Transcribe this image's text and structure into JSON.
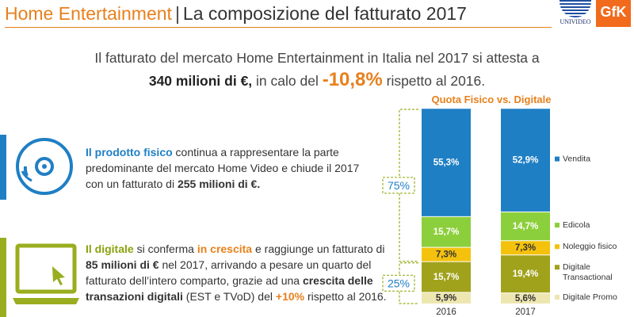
{
  "header": {
    "title_part1": "Home Entertainment",
    "separator": "|",
    "title_part2": "La composizione del fatturato 2017",
    "logo_univideo": "UNIVIDEO",
    "logo_gfk": "GfK"
  },
  "intro": {
    "line1": "Il fatturato del mercato Home Entertainment in Italia nel 2017 si attesta a",
    "amount": "340 milioni di €,",
    "mid": " in calo del ",
    "decline": "-10,8%",
    "end": " rispetto al 2016."
  },
  "physical": {
    "icon": "disc-icon",
    "highlight": "Il prodotto fisico",
    "text1": " continua a rappresentare la parte predominante del mercato Home Video e chiude il 2017 con un fatturato di ",
    "amount": "255 milioni di €.",
    "color": "#1f7fc4"
  },
  "digital": {
    "icon": "laptop-icon",
    "highlight": "Il digitale",
    "text1": " si conferma ",
    "growth": "in crescita",
    "text2": " e raggiunge un fatturato di ",
    "amount": "85 milioni di €",
    "text3": " nel 2017, arrivando a pesare un quarto del fatturato dell’intero comparto, grazie ad una ",
    "growth2": "crescita delle transazioni digitali",
    "text4": " (EST e TVoD) del ",
    "pct": "+10%",
    "text5": " rispetto al 2016.",
    "color": "#9aad1e"
  },
  "chart_data": {
    "type": "bar",
    "stacked": true,
    "title": "Quota Fisico vs. Digitale",
    "categories": [
      "2016",
      "2017"
    ],
    "series": [
      {
        "name": "Digitale Promo",
        "values": [
          5.9,
          5.6
        ],
        "labels": [
          "5,9%",
          "5,6%"
        ],
        "color": "#ede6b0",
        "text_color": "#333333"
      },
      {
        "name": "Digitale Transactional",
        "values": [
          15.7,
          19.4
        ],
        "labels": [
          "15,7%",
          "19,4%"
        ],
        "color": "#a1a21c",
        "text_color": "#ffffff"
      },
      {
        "name": "Noleggio fisico",
        "values": [
          7.3,
          7.3
        ],
        "labels": [
          "7,3%",
          "7,3%"
        ],
        "color": "#f4c20d",
        "text_color": "#333333"
      },
      {
        "name": "Edicola",
        "values": [
          15.7,
          14.7
        ],
        "labels": [
          "15,7%",
          "14,7%"
        ],
        "color": "#8ccf3c",
        "text_color": "#ffffff"
      },
      {
        "name": "Vendita",
        "values": [
          55.3,
          52.9
        ],
        "labels": [
          "55,3%",
          "52,9%"
        ],
        "color": "#1f7fc4",
        "text_color": "#ffffff"
      }
    ],
    "legend": [
      "Vendita",
      "Edicola",
      "Noleggio fisico",
      "Digitale Transactional",
      "Digitale Promo"
    ],
    "legend_position": "right",
    "ylim": [
      0,
      100
    ],
    "brackets": [
      {
        "label": "75%",
        "from": 100,
        "to": 21.6
      },
      {
        "label": "25%",
        "from": 21.6,
        "to": 0
      }
    ]
  }
}
